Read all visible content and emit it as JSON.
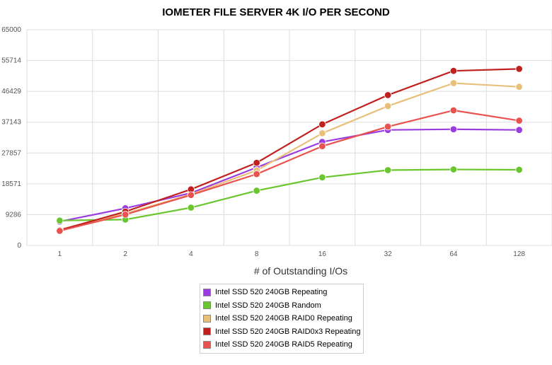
{
  "chart_data": {
    "type": "line",
    "title": "IOMETER FILE SERVER 4K I/O PER SECOND",
    "xlabel": "# of Outstanding I/Os",
    "ylabel": "",
    "categories": [
      "1",
      "2",
      "4",
      "8",
      "16",
      "32",
      "64",
      "128"
    ],
    "yticks": [
      "0",
      "9286",
      "18571",
      "27857",
      "37143",
      "46429",
      "55714",
      "65000"
    ],
    "ylim": [
      0,
      65000
    ],
    "grid": true,
    "legend": "bottom-center",
    "series": [
      {
        "name": "Intel SSD 520 240GB Repeating",
        "color": "#9b3ce0",
        "values": [
          7200,
          11200,
          15800,
          23500,
          31200,
          34800,
          35000,
          34800
        ]
      },
      {
        "name": "Intel SSD 520 240GB Random",
        "color": "#6ac62e",
        "values": [
          7500,
          7800,
          11400,
          16500,
          20500,
          22700,
          22900,
          22800
        ]
      },
      {
        "name": "Intel SSD 520 240GB RAID0 Repeating",
        "color": "#e8c07a",
        "values": [
          4800,
          9600,
          15400,
          22600,
          33800,
          42000,
          48900,
          47800
        ]
      },
      {
        "name": "Intel SSD 520 240GB RAID0x3 Repeating",
        "color": "#c0211f",
        "values": [
          4600,
          10200,
          16900,
          24900,
          36500,
          45300,
          52600,
          53200
        ]
      },
      {
        "name": "Intel SSD 520 240GB RAID5 Repeating",
        "color": "#e8534f",
        "values": [
          4400,
          9300,
          15200,
          21500,
          29900,
          35800,
          40700,
          37600
        ]
      }
    ]
  }
}
